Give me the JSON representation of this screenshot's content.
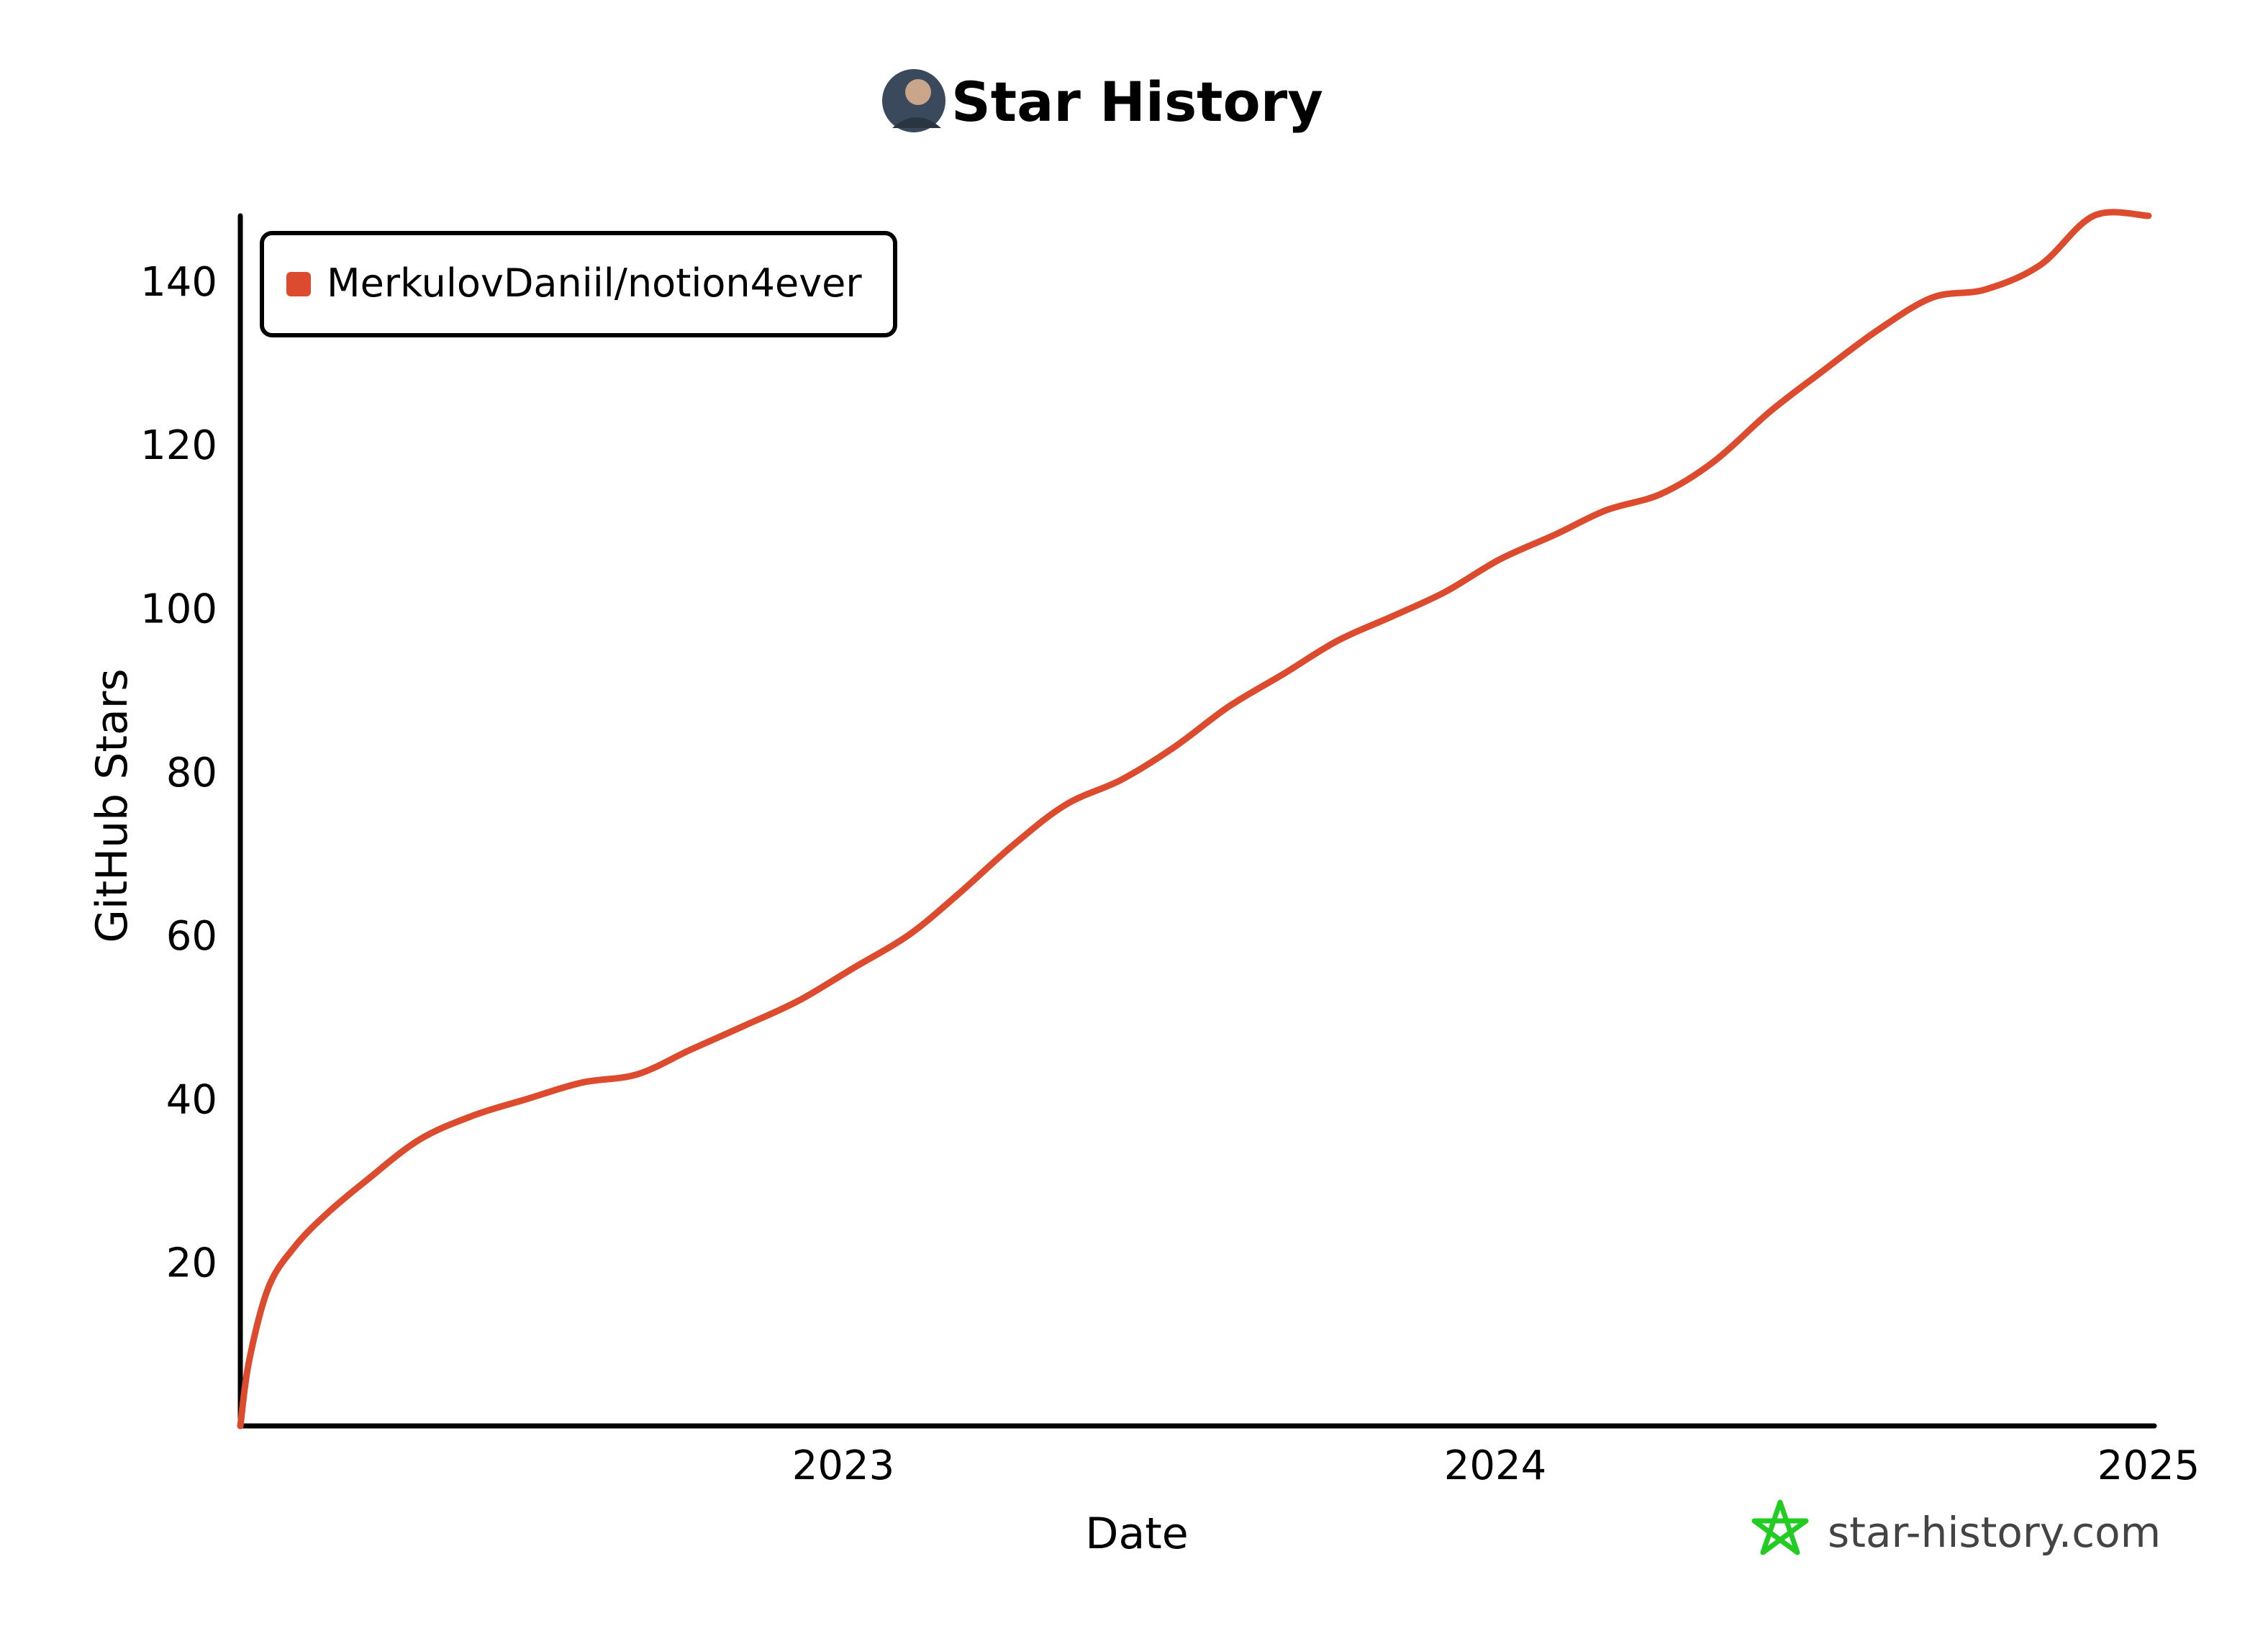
{
  "page": {
    "title": "Star History",
    "watermark": "star-history.com",
    "avatar_icon": "user-avatar-icon",
    "watermark_icon": "star-outline-icon",
    "watermark_icon_color": "#22cc22"
  },
  "chart_data": {
    "type": "line",
    "title": "Star History",
    "xlabel": "Date",
    "ylabel": "GitHub Stars",
    "x_ticks": [
      "2023",
      "2024",
      "2025"
    ],
    "y_ticks": [
      20,
      40,
      60,
      80,
      100,
      120,
      140
    ],
    "xlim": [
      "2022-01-20",
      "2025-01-01"
    ],
    "ylim": [
      0,
      148
    ],
    "grid": false,
    "legend_position": "top-left",
    "series": [
      {
        "name": "MerkulovDaniil/notion4ever",
        "color": "#dd4b2f",
        "x": [
          "2022-01-20",
          "2022-01-25",
          "2022-02-05",
          "2022-02-20",
          "2022-03-10",
          "2022-04-01",
          "2022-05-01",
          "2022-06-01",
          "2022-07-01",
          "2022-08-01",
          "2022-09-01",
          "2022-10-01",
          "2022-11-01",
          "2022-12-01",
          "2023-01-01",
          "2023-02-01",
          "2023-03-01",
          "2023-04-01",
          "2023-05-01",
          "2023-06-01",
          "2023-07-01",
          "2023-08-01",
          "2023-09-01",
          "2023-10-01",
          "2023-11-01",
          "2023-12-01",
          "2024-01-01",
          "2024-02-01",
          "2024-03-01",
          "2024-04-01",
          "2024-05-01",
          "2024-06-01",
          "2024-07-01",
          "2024-08-01",
          "2024-09-01",
          "2024-10-01",
          "2024-11-01",
          "2024-12-01",
          "2025-01-01"
        ],
        "y": [
          0,
          8,
          17,
          22,
          26,
          30,
          35,
          38,
          40,
          42,
          43,
          46,
          49,
          52,
          56,
          60,
          65,
          71,
          76,
          79,
          83,
          88,
          92,
          96,
          99,
          102,
          106,
          109,
          112,
          114,
          118,
          124,
          129,
          134,
          138,
          139,
          142,
          148,
          148
        ]
      }
    ]
  }
}
